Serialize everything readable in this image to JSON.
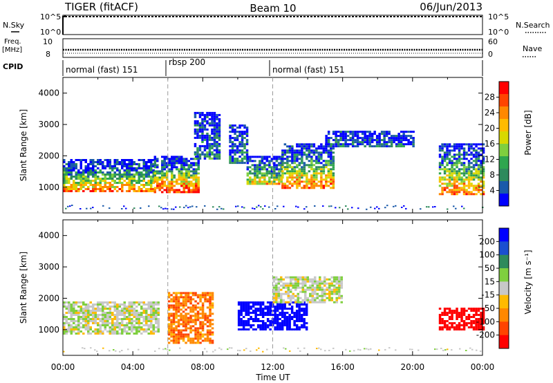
{
  "header": {
    "radar": "TIGER (fitACF)",
    "beam": "Beam 10",
    "date": "06/Jun/2013"
  },
  "strip_sky": {
    "label": "N.Sky",
    "left_ticks": [
      "10^5",
      "10^0"
    ],
    "right_label": "N.Search",
    "right_ticks": [
      "10^5",
      "10^0"
    ]
  },
  "strip_freq": {
    "label_line1": "Freq.",
    "label_line2": "[MHz]",
    "left_ticks": [
      "10",
      "8"
    ],
    "right_label": "Nave",
    "right_ticks": [
      "60",
      "0"
    ]
  },
  "cpid": {
    "label": "CPID",
    "segments": [
      {
        "label": "normal (fast) 151",
        "start_hour": 0,
        "end_hour": 6
      },
      {
        "label": "rbsp 200",
        "start_hour": 6,
        "end_hour": 12
      },
      {
        "label": "normal (fast) 151",
        "start_hour": 12,
        "end_hour": 24
      }
    ]
  },
  "time_axis": {
    "label": "Time UT",
    "ticks": [
      "00:00",
      "04:00",
      "08:00",
      "12:00",
      "16:00",
      "20:00",
      "00:00"
    ]
  },
  "chart_data": [
    {
      "type": "heatmap",
      "name": "power",
      "ylabel": "Slant Range [km]",
      "yticks": [
        "4000",
        "3000",
        "2000",
        "1000"
      ],
      "ylim": [
        180,
        4500
      ],
      "xlim_hours": [
        0,
        24
      ],
      "colorbar": {
        "label": "Power [dB]",
        "ticks": [
          "28",
          "24",
          "20",
          "16",
          "12",
          "8",
          "4"
        ],
        "colors": [
          "#ff0000",
          "#ff4400",
          "#ff8800",
          "#ffbb00",
          "#d8d800",
          "#7fcf3f",
          "#2fa64f",
          "#2e8a5c",
          "#1a5aaa",
          "#0000ff"
        ]
      },
      "regions": [
        {
          "t0": 0.0,
          "t1": 5.2,
          "r0": 850,
          "r1": 1900,
          "peak": 24
        },
        {
          "t0": 5.2,
          "t1": 7.8,
          "r0": 850,
          "r1": 2000,
          "peak": 28
        },
        {
          "t0": 7.5,
          "t1": 9.0,
          "r0": 1900,
          "r1": 3400,
          "peak": 10
        },
        {
          "t0": 9.5,
          "t1": 10.5,
          "r0": 1800,
          "r1": 3000,
          "peak": 10
        },
        {
          "t0": 10.5,
          "t1": 12.5,
          "r0": 1100,
          "r1": 2000,
          "peak": 20
        },
        {
          "t0": 12.5,
          "t1": 15.5,
          "r0": 1000,
          "r1": 2400,
          "peak": 24
        },
        {
          "t0": 15.0,
          "t1": 20.0,
          "r0": 2300,
          "r1": 2800,
          "peak": 8
        },
        {
          "t0": 21.5,
          "t1": 24.0,
          "r0": 800,
          "r1": 2400,
          "peak": 24
        }
      ]
    },
    {
      "type": "heatmap",
      "name": "velocity",
      "ylabel": "Slant Range [km]",
      "yticks": [
        "4000",
        "3000",
        "2000",
        "1000"
      ],
      "ylim": [
        180,
        4500
      ],
      "xlim_hours": [
        0,
        24
      ],
      "colorbar": {
        "label": "Velocity [m s⁻¹]",
        "ticks": [
          "200",
          "100",
          "50",
          "15",
          "-15",
          "-50",
          "-100",
          "-200"
        ],
        "colors": [
          "#0000ff",
          "#1a4fd0",
          "#2e8a5c",
          "#7fcf3f",
          "#c8c8c8",
          "#ffbb00",
          "#ff8800",
          "#ff4400",
          "#ff0000"
        ]
      },
      "regions": [
        {
          "t0": 0.0,
          "t1": 5.5,
          "r0": 850,
          "r1": 1900,
          "peak": 0
        },
        {
          "t0": 6.0,
          "t1": 8.5,
          "r0": 600,
          "r1": 2200,
          "peak": -100
        },
        {
          "t0": 10.0,
          "t1": 14.0,
          "r0": 1000,
          "r1": 1900,
          "peak": 200
        },
        {
          "t0": 12.0,
          "t1": 16.0,
          "r0": 1900,
          "r1": 2700,
          "peak": 0
        },
        {
          "t0": 21.5,
          "t1": 24.0,
          "r0": 1000,
          "r1": 1700,
          "peak": -200
        }
      ]
    }
  ]
}
